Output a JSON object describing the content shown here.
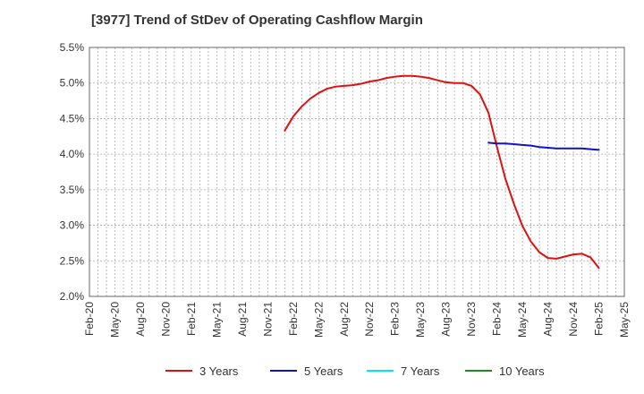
{
  "chart_data": {
    "type": "line",
    "title": "[3977]  Trend of StDev of Operating Cashflow Margin",
    "xlabel": "",
    "ylabel": "",
    "ylim": [
      0.02,
      0.055
    ],
    "y_ticks": [
      0.02,
      0.025,
      0.03,
      0.035,
      0.04,
      0.045,
      0.05,
      0.055
    ],
    "y_tick_labels": [
      "2.0%",
      "2.5%",
      "3.0%",
      "3.5%",
      "4.0%",
      "4.5%",
      "5.0%",
      "5.5%"
    ],
    "x_ticks": [
      "2020-02",
      "2020-05",
      "2020-08",
      "2020-11",
      "2021-02",
      "2021-05",
      "2021-08",
      "2021-11",
      "2022-02",
      "2022-05",
      "2022-08",
      "2022-11",
      "2023-02",
      "2023-05",
      "2023-08",
      "2023-11",
      "2024-02",
      "2024-05",
      "2024-08",
      "2024-11",
      "2025-02",
      "2025-05"
    ],
    "x_tick_labels": [
      "Feb-20",
      "May-20",
      "Aug-20",
      "Nov-20",
      "Feb-21",
      "May-21",
      "Aug-21",
      "Nov-21",
      "Feb-22",
      "May-22",
      "Aug-22",
      "Nov-22",
      "Feb-23",
      "May-23",
      "Aug-23",
      "Nov-23",
      "Feb-24",
      "May-24",
      "Aug-24",
      "Nov-24",
      "Feb-25",
      "May-25"
    ],
    "legend_position": "bottom",
    "grid": true,
    "series": [
      {
        "name": "3 Years",
        "color": "#dd1111",
        "points": [
          [
            "2022-01",
            0.0433
          ],
          [
            "2022-02",
            0.0453
          ],
          [
            "2022-03",
            0.0467
          ],
          [
            "2022-04",
            0.0478
          ],
          [
            "2022-05",
            0.0486
          ],
          [
            "2022-06",
            0.0492
          ],
          [
            "2022-07",
            0.0495
          ],
          [
            "2022-08",
            0.0496
          ],
          [
            "2022-09",
            0.0497
          ],
          [
            "2022-10",
            0.0499
          ],
          [
            "2022-11",
            0.0502
          ],
          [
            "2022-12",
            0.0504
          ],
          [
            "2023-01",
            0.0507
          ],
          [
            "2023-02",
            0.0509
          ],
          [
            "2023-03",
            0.051
          ],
          [
            "2023-04",
            0.051
          ],
          [
            "2023-05",
            0.0509
          ],
          [
            "2023-06",
            0.0507
          ],
          [
            "2023-07",
            0.0504
          ],
          [
            "2023-08",
            0.0501
          ],
          [
            "2023-09",
            0.05
          ],
          [
            "2023-10",
            0.05
          ],
          [
            "2023-11",
            0.0496
          ],
          [
            "2023-12",
            0.0484
          ],
          [
            "2024-01",
            0.0458
          ],
          [
            "2024-02",
            0.041
          ],
          [
            "2024-03",
            0.0365
          ],
          [
            "2024-04",
            0.033
          ],
          [
            "2024-05",
            0.0299
          ],
          [
            "2024-06",
            0.0277
          ],
          [
            "2024-07",
            0.0262
          ],
          [
            "2024-08",
            0.0254
          ],
          [
            "2024-09",
            0.0253
          ],
          [
            "2024-10",
            0.0256
          ],
          [
            "2024-11",
            0.0259
          ],
          [
            "2024-12",
            0.026
          ],
          [
            "2025-01",
            0.0255
          ],
          [
            "2025-02",
            0.024
          ]
        ]
      },
      {
        "name": "5 Years",
        "color": "#1111cc",
        "points": [
          [
            "2024-01",
            0.0416
          ],
          [
            "2024-02",
            0.0415
          ],
          [
            "2024-03",
            0.0415
          ],
          [
            "2024-04",
            0.0414
          ],
          [
            "2024-05",
            0.0413
          ],
          [
            "2024-06",
            0.0412
          ],
          [
            "2024-07",
            0.041
          ],
          [
            "2024-08",
            0.0409
          ],
          [
            "2024-09",
            0.0408
          ],
          [
            "2024-10",
            0.0408
          ],
          [
            "2024-11",
            0.0408
          ],
          [
            "2024-12",
            0.0408
          ],
          [
            "2025-01",
            0.0407
          ],
          [
            "2025-02",
            0.0406
          ]
        ]
      },
      {
        "name": "7 Years",
        "color": "#00e5ee",
        "points": []
      },
      {
        "name": "10 Years",
        "color": "#228822",
        "points": []
      }
    ]
  }
}
